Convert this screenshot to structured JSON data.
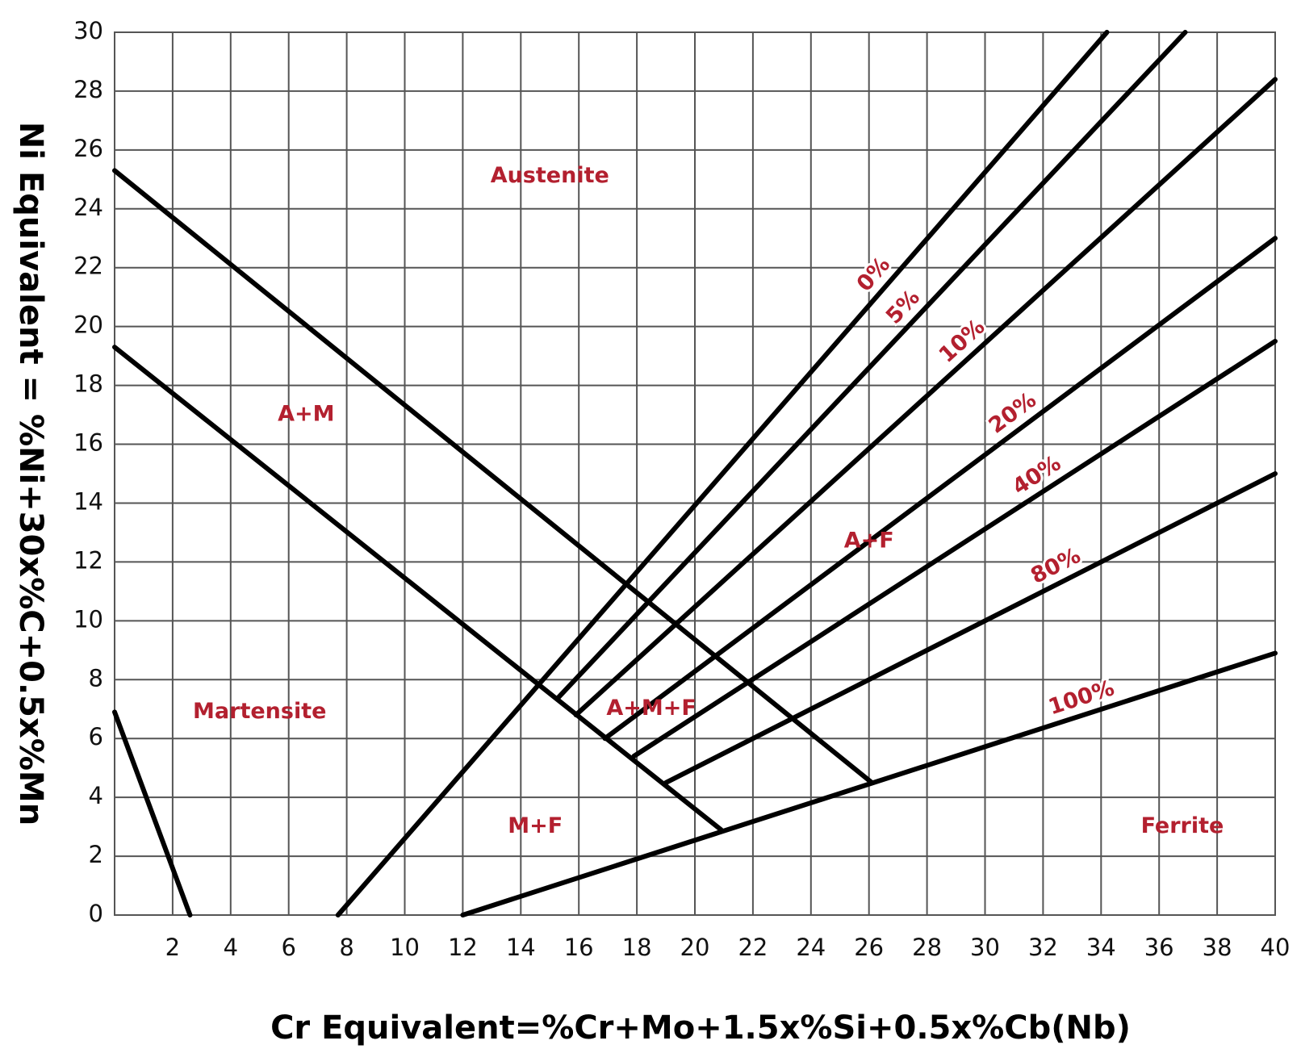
{
  "chart_data": {
    "type": "line",
    "xlabel": "Cr Equivalent=%Cr+Mo+1.5x%Si+0.5x%Cb(Nb)",
    "ylabel": "Ni Equivalent = %Ni+30x%C+0.5x%Mn",
    "xlim": [
      0,
      40
    ],
    "ylim": [
      0,
      30
    ],
    "xticks": [
      2,
      4,
      6,
      8,
      10,
      12,
      14,
      16,
      18,
      20,
      22,
      24,
      26,
      28,
      30,
      32,
      34,
      36,
      38,
      40
    ],
    "yticks": [
      0,
      2,
      4,
      6,
      8,
      10,
      12,
      14,
      16,
      18,
      20,
      22,
      24,
      26,
      28,
      30
    ],
    "grid": true,
    "color": "#000000",
    "series": [
      {
        "x": [
          0,
          2.6
        ],
        "y": [
          6.9,
          0
        ]
      },
      {
        "x": [
          0,
          26.1
        ],
        "y": [
          25.3,
          4.5
        ]
      },
      {
        "x": [
          0,
          20.9
        ],
        "y": [
          19.3,
          2.9
        ]
      },
      {
        "name": "0%",
        "x": [
          7.7,
          34.2
        ],
        "y": [
          0,
          30
        ]
      },
      {
        "name": "5%",
        "x": [
          15.3,
          36.9
        ],
        "y": [
          7.4,
          30
        ]
      },
      {
        "name": "10%",
        "x": [
          15.9,
          40
        ],
        "y": [
          6.8,
          28.4
        ]
      },
      {
        "name": "20%",
        "x": [
          16.9,
          40
        ],
        "y": [
          6.0,
          23.0
        ]
      },
      {
        "name": "40%",
        "x": [
          17.9,
          40
        ],
        "y": [
          5.4,
          19.5
        ]
      },
      {
        "name": "80%",
        "x": [
          19.0,
          40
        ],
        "y": [
          4.5,
          15.0
        ]
      },
      {
        "name": "100%",
        "x": [
          12,
          40
        ],
        "y": [
          0,
          8.9
        ]
      }
    ],
    "annotations": [
      "Austenite",
      "A+M",
      "Martensite",
      "M+F",
      "A+F",
      "A+M+F",
      "Ferrite"
    ],
    "annotation_color": "#b3202f"
  }
}
